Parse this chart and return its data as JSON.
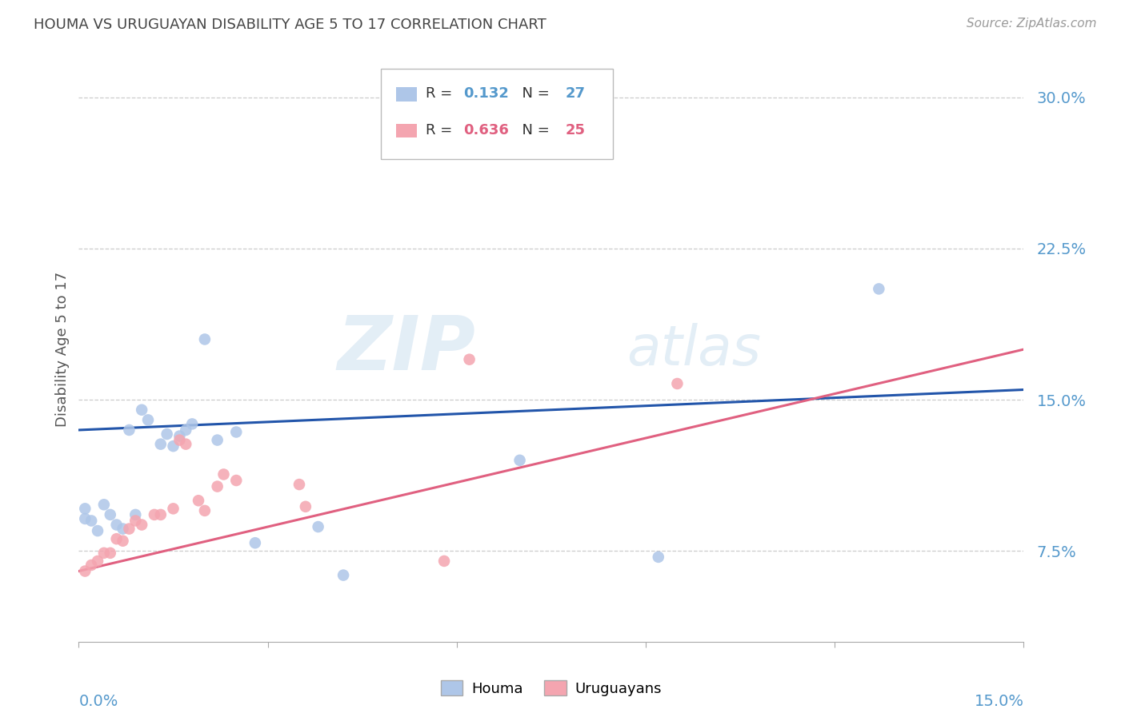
{
  "title": "HOUMA VS URUGUAYAN DISABILITY AGE 5 TO 17 CORRELATION CHART",
  "source": "Source: ZipAtlas.com",
  "ylabel": "Disability Age 5 to 17",
  "yticks": [
    0.075,
    0.15,
    0.225,
    0.3
  ],
  "ytick_labels": [
    "7.5%",
    "15.0%",
    "22.5%",
    "30.0%"
  ],
  "xmin": 0.0,
  "xmax": 0.15,
  "ymin": 0.03,
  "ymax": 0.32,
  "houma_color": "#aec6e8",
  "uruguayan_color": "#f4a5b0",
  "houma_line_color": "#2255aa",
  "uruguayan_line_color": "#e06080",
  "houma_R": 0.132,
  "houma_N": 27,
  "uruguayan_R": 0.636,
  "uruguayan_N": 25,
  "houma_x": [
    0.001,
    0.001,
    0.002,
    0.003,
    0.004,
    0.005,
    0.006,
    0.007,
    0.008,
    0.009,
    0.01,
    0.011,
    0.013,
    0.014,
    0.015,
    0.016,
    0.017,
    0.018,
    0.02,
    0.022,
    0.025,
    0.028,
    0.038,
    0.042,
    0.07,
    0.092,
    0.127
  ],
  "houma_y": [
    0.091,
    0.096,
    0.09,
    0.085,
    0.098,
    0.093,
    0.088,
    0.086,
    0.135,
    0.093,
    0.145,
    0.14,
    0.128,
    0.133,
    0.127,
    0.132,
    0.135,
    0.138,
    0.18,
    0.13,
    0.134,
    0.079,
    0.087,
    0.063,
    0.12,
    0.072,
    0.205
  ],
  "uruguayan_x": [
    0.001,
    0.002,
    0.003,
    0.004,
    0.005,
    0.006,
    0.007,
    0.008,
    0.009,
    0.01,
    0.012,
    0.013,
    0.015,
    0.016,
    0.017,
    0.019,
    0.02,
    0.022,
    0.023,
    0.025,
    0.035,
    0.036,
    0.058,
    0.062,
    0.095
  ],
  "uruguayan_y": [
    0.065,
    0.068,
    0.07,
    0.074,
    0.074,
    0.081,
    0.08,
    0.086,
    0.09,
    0.088,
    0.093,
    0.093,
    0.096,
    0.13,
    0.128,
    0.1,
    0.095,
    0.107,
    0.113,
    0.11,
    0.108,
    0.097,
    0.07,
    0.17,
    0.158
  ],
  "watermark": "ZIPatlas",
  "grid_color": "#cccccc",
  "axis_label_color": "#5599cc",
  "title_color": "#444444"
}
